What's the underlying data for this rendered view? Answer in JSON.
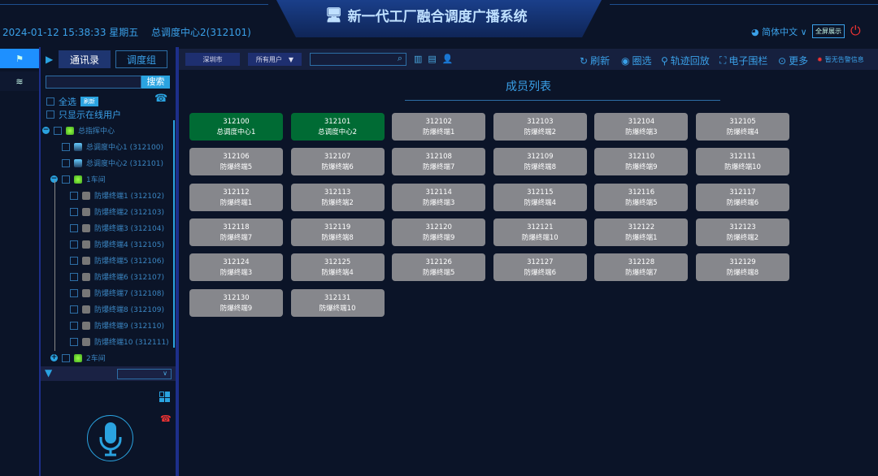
{
  "header": {
    "title": "新一代工厂融合调度广播系统",
    "datetime": "2024-01-12 15:38:33 星期五",
    "center": "总调度中心2(312101)",
    "language": "简体中文",
    "fullscreen": "全屏展示"
  },
  "left": {
    "tabs": [
      "通讯录",
      "调度组"
    ],
    "search_label": "搜索",
    "search_placeholder": "",
    "select_all": "全选",
    "refresh": "刷新",
    "online_only": "只显示在线用户",
    "tree": [
      {
        "label": "总指挥中心",
        "level": 0,
        "type": "group",
        "toggle": "minus"
      },
      {
        "label": "总调度中心1 (312100)",
        "level": 1,
        "type": "pc"
      },
      {
        "label": "总调度中心2 (312101)",
        "level": 1,
        "type": "pc"
      },
      {
        "label": "1车间",
        "level": 1,
        "type": "group",
        "toggle": "minus"
      },
      {
        "label": "防爆终端1 (312102)",
        "level": 2,
        "type": "terminal"
      },
      {
        "label": "防爆终端2 (312103)",
        "level": 2,
        "type": "terminal"
      },
      {
        "label": "防爆终端3 (312104)",
        "level": 2,
        "type": "terminal"
      },
      {
        "label": "防爆终端4 (312105)",
        "level": 2,
        "type": "terminal"
      },
      {
        "label": "防爆终端5 (312106)",
        "level": 2,
        "type": "terminal"
      },
      {
        "label": "防爆终端6 (312107)",
        "level": 2,
        "type": "terminal"
      },
      {
        "label": "防爆终端7 (312108)",
        "level": 2,
        "type": "terminal"
      },
      {
        "label": "防爆终端8 (312109)",
        "level": 2,
        "type": "terminal"
      },
      {
        "label": "防爆终端9 (312110)",
        "level": 2,
        "type": "terminal"
      },
      {
        "label": "防爆终端10 (312111)",
        "level": 2,
        "type": "terminal"
      },
      {
        "label": "2车间",
        "level": 1,
        "type": "group",
        "toggle": "plus"
      }
    ]
  },
  "toolbar": {
    "city": "深圳市",
    "users_filter": "所有用户",
    "search_value": "",
    "actions": [
      "刷新",
      "圈选",
      "轨迹回放",
      "电子围栏",
      "更多"
    ],
    "alarm": "暂无告警信息"
  },
  "main": {
    "title": "成员列表",
    "members": [
      {
        "id": "312100",
        "name": "总调度中心1",
        "online": true
      },
      {
        "id": "312101",
        "name": "总调度中心2",
        "online": true
      },
      {
        "id": "312102",
        "name": "防爆终端1"
      },
      {
        "id": "312103",
        "name": "防爆终端2"
      },
      {
        "id": "312104",
        "name": "防爆终端3"
      },
      {
        "id": "312105",
        "name": "防爆终端4"
      },
      {
        "id": "312106",
        "name": "防爆终端5"
      },
      {
        "id": "312107",
        "name": "防爆终端6"
      },
      {
        "id": "312108",
        "name": "防爆终端7"
      },
      {
        "id": "312109",
        "name": "防爆终端8"
      },
      {
        "id": "312110",
        "name": "防爆终端9"
      },
      {
        "id": "312111",
        "name": "防爆终端10"
      },
      {
        "id": "312112",
        "name": "防爆终端1"
      },
      {
        "id": "312113",
        "name": "防爆终端2"
      },
      {
        "id": "312114",
        "name": "防爆终端3"
      },
      {
        "id": "312115",
        "name": "防爆终端4"
      },
      {
        "id": "312116",
        "name": "防爆终端5"
      },
      {
        "id": "312117",
        "name": "防爆终端6"
      },
      {
        "id": "312118",
        "name": "防爆终端7"
      },
      {
        "id": "312119",
        "name": "防爆终端8"
      },
      {
        "id": "312120",
        "name": "防爆终端9"
      },
      {
        "id": "312121",
        "name": "防爆终端10"
      },
      {
        "id": "312122",
        "name": "防爆终端1"
      },
      {
        "id": "312123",
        "name": "防爆终端2"
      },
      {
        "id": "312124",
        "name": "防爆终端3"
      },
      {
        "id": "312125",
        "name": "防爆终端4"
      },
      {
        "id": "312126",
        "name": "防爆终端5"
      },
      {
        "id": "312127",
        "name": "防爆终端6"
      },
      {
        "id": "312128",
        "name": "防爆终端7"
      },
      {
        "id": "312129",
        "name": "防爆终端8"
      },
      {
        "id": "312130",
        "name": "防爆终端9"
      },
      {
        "id": "312131",
        "name": "防爆终端10"
      }
    ]
  },
  "colors": {
    "online": "#006b34",
    "offline": "#86878c",
    "accent": "#2aa3e0",
    "alarm": "#e33333"
  }
}
